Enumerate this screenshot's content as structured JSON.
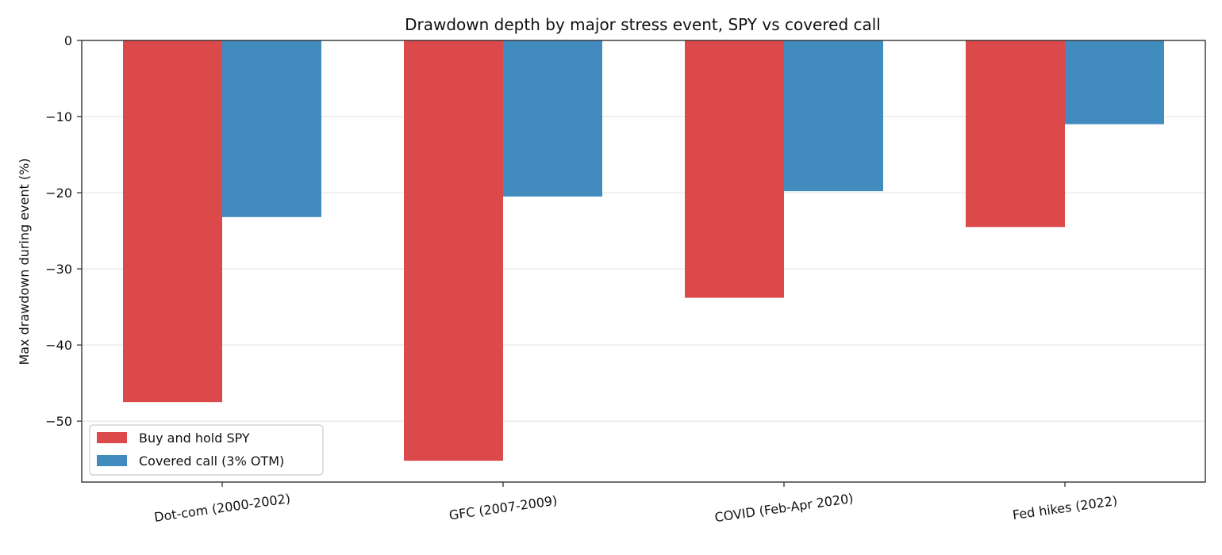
{
  "chart_data": {
    "type": "bar",
    "title": "Drawdown depth by major stress event, SPY vs covered call",
    "xlabel": "",
    "ylabel": "Max drawdown during event (%)",
    "categories": [
      "Dot-com (2000-2002)",
      "GFC (2007-2009)",
      "COVID (Feb-Apr 2020)",
      "Fed hikes (2022)"
    ],
    "series": [
      {
        "name": "Buy and hold SPY",
        "values": [
          -47.5,
          -55.2,
          -33.8,
          -24.5
        ],
        "color": "#dc494a"
      },
      {
        "name": "Covered call (3% OTM)",
        "values": [
          -23.2,
          -20.5,
          -19.8,
          -11.0
        ],
        "color": "#428bbe"
      }
    ],
    "ylim": [
      -58,
      0
    ],
    "yticks": [
      0,
      -10,
      -20,
      -30,
      -40,
      -50
    ],
    "grid": "horizontal",
    "legend_position": "lower-left"
  }
}
